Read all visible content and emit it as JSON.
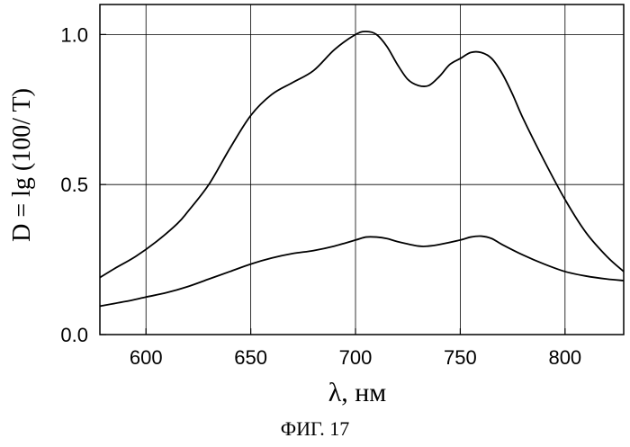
{
  "chart_data": {
    "type": "line",
    "xlabel": "λ, нм",
    "ylabel": "D = lg (100/ T)",
    "xlim": [
      578,
      828
    ],
    "ylim": [
      0.0,
      1.1
    ],
    "xticks": [
      600,
      650,
      700,
      750,
      800
    ],
    "yticks": [
      0.0,
      0.5,
      1.0
    ],
    "xtick_labels": [
      "600",
      "650",
      "700",
      "750",
      "800"
    ],
    "ytick_labels": [
      "0.0",
      "0.5",
      "1.0"
    ],
    "grid": true,
    "series": [
      {
        "x": [
          578,
          585,
          595,
          605,
          615,
          620,
          630,
          640,
          650,
          660,
          670,
          680,
          690,
          700,
          705,
          710,
          715,
          720,
          725,
          730,
          735,
          740,
          745,
          750,
          755,
          760,
          765,
          770,
          775,
          780,
          790,
          800,
          810,
          820,
          828
        ],
        "y": [
          0.19,
          0.22,
          0.26,
          0.31,
          0.37,
          0.41,
          0.5,
          0.62,
          0.73,
          0.8,
          0.84,
          0.88,
          0.95,
          1.0,
          1.01,
          1.0,
          0.96,
          0.9,
          0.85,
          0.83,
          0.83,
          0.86,
          0.9,
          0.92,
          0.94,
          0.94,
          0.92,
          0.87,
          0.8,
          0.72,
          0.58,
          0.45,
          0.34,
          0.26,
          0.21
        ]
      },
      {
        "x": [
          578,
          590,
          600,
          610,
          620,
          630,
          640,
          650,
          660,
          670,
          680,
          690,
          700,
          705,
          710,
          715,
          720,
          730,
          735,
          740,
          750,
          755,
          760,
          765,
          770,
          780,
          790,
          800,
          810,
          820,
          828
        ],
        "y": [
          0.095,
          0.11,
          0.125,
          0.14,
          0.16,
          0.185,
          0.21,
          0.235,
          0.255,
          0.27,
          0.28,
          0.295,
          0.315,
          0.325,
          0.325,
          0.32,
          0.31,
          0.295,
          0.295,
          0.3,
          0.315,
          0.325,
          0.328,
          0.32,
          0.3,
          0.265,
          0.235,
          0.21,
          0.195,
          0.185,
          0.18
        ]
      }
    ]
  },
  "caption": "ФИГ. 17"
}
